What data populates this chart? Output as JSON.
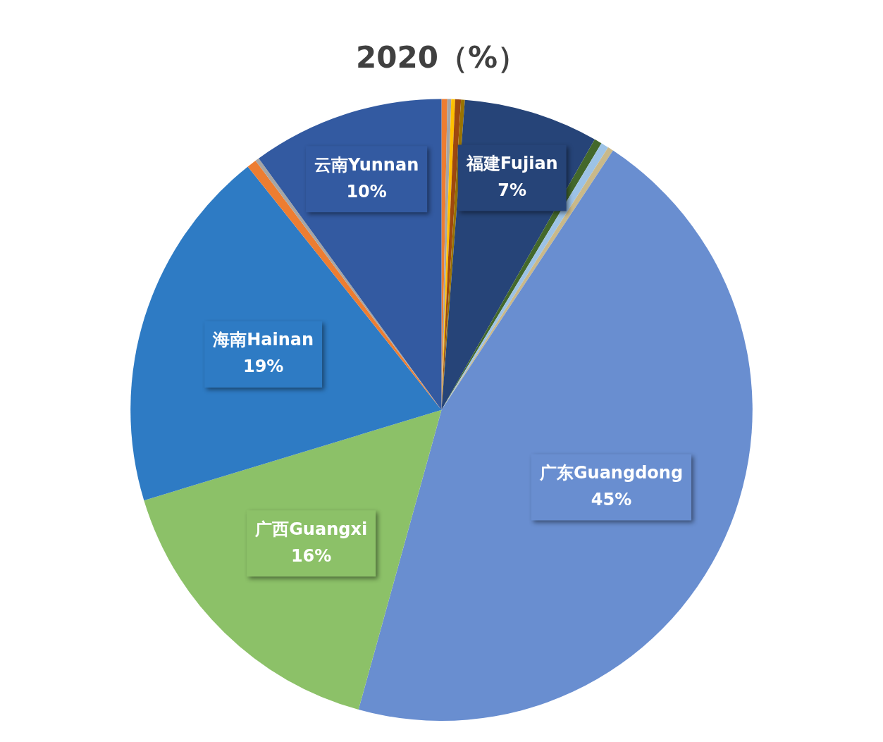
{
  "chart_data": {
    "type": "pie",
    "title": "2020（%）",
    "categories": [
      null,
      null,
      null,
      null,
      null,
      "福建Fujian",
      null,
      null,
      null,
      "广东Guangdong",
      "广西Guangxi",
      "海南Hainan",
      null,
      null,
      "云南Yunnan"
    ],
    "values": [
      0.3,
      0.2,
      0.2,
      0.3,
      0.2,
      7,
      0.4,
      0.4,
      0.3,
      45,
      16,
      19,
      0.5,
      0.2,
      10
    ],
    "value_labels": [
      null,
      null,
      null,
      null,
      null,
      "7%",
      null,
      null,
      null,
      "45%",
      "16%",
      "19%",
      null,
      null,
      "10%"
    ],
    "colors": [
      "#ed7d31",
      "#a5a5a5",
      "#ffc000",
      "#9e480e",
      "#997300",
      "#264478",
      "#43682b",
      "#9dc3e6",
      "#c9b98a",
      "#698ed0",
      "#8cc168",
      "#2e7bc4",
      "#ed7d31",
      "#a5a5a5",
      "#335aa1"
    ],
    "legend": false
  }
}
